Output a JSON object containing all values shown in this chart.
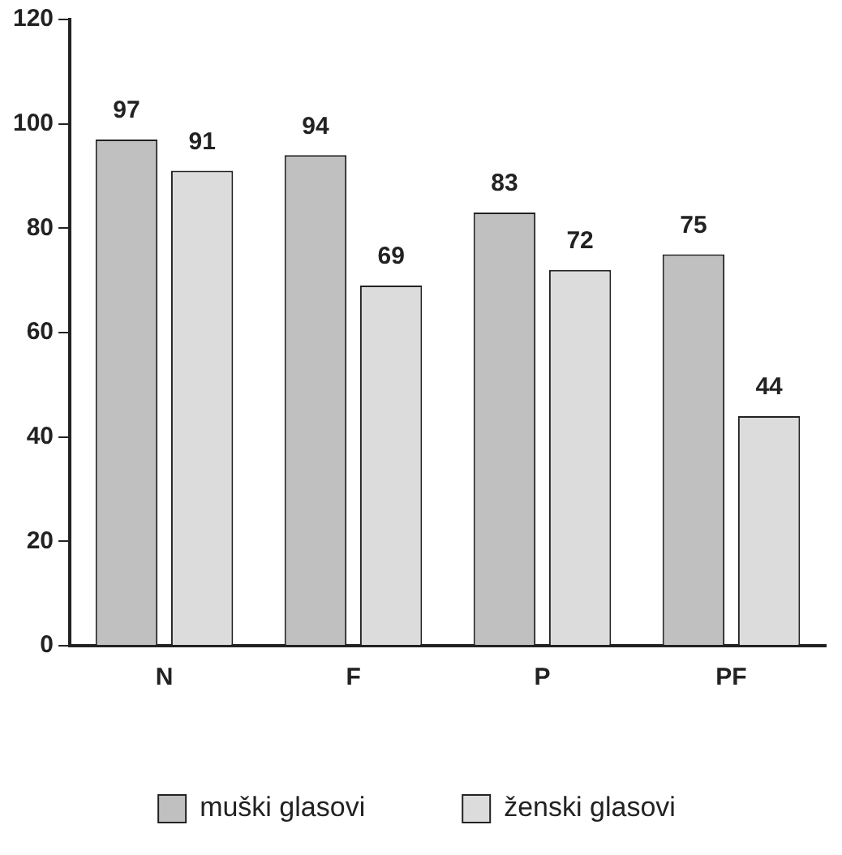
{
  "chart_data": {
    "type": "bar",
    "categories": [
      "N",
      "F",
      "P",
      "PF"
    ],
    "series": [
      {
        "name": "muški glasovi",
        "color": "#c0c0c0",
        "values": [
          97,
          94,
          83,
          75
        ]
      },
      {
        "name": "ženski glasovi",
        "color": "#dcdcdc",
        "values": [
          91,
          69,
          72,
          44
        ]
      }
    ],
    "ylim": [
      0,
      120
    ],
    "yticks": [
      0,
      20,
      40,
      60,
      80,
      100,
      120
    ],
    "grid": false,
    "legend": "bottom",
    "data_labels": true
  }
}
